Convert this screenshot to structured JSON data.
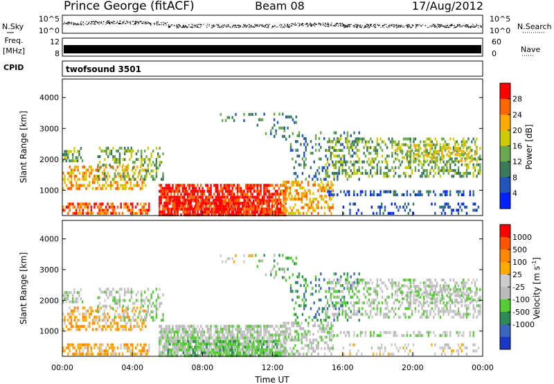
{
  "header": {
    "station": "Prince George (fitACF)",
    "beam": "Beam 08",
    "date": "17/Aug/2012"
  },
  "strips": {
    "nsky_label": "N.Sky",
    "nsky_ticks": [
      "10^5",
      "10^0"
    ],
    "nsearch_label": "N.Search",
    "nsearch_ticks": [
      "10^5",
      "10^0"
    ],
    "freq_label_1": "Freq.",
    "freq_label_2": "[MHz]",
    "freq_ticks": [
      "12",
      "8"
    ],
    "nave_label": "Nave",
    "nave_ticks": [
      "60",
      "0"
    ],
    "cpid_label": "CPID",
    "cpid_value": "twofsound 3501"
  },
  "colors": {
    "power_scale": [
      "#0022ff",
      "#2255bb",
      "#3a7a5a",
      "#6aa84f",
      "#cccc00",
      "#ffaa00",
      "#ff6600",
      "#ff0000"
    ],
    "velocity_scale": [
      "#1a37c8",
      "#3a66c0",
      "#2e8a55",
      "#55cc33",
      "#bbbbbb",
      "#cccccc",
      "#ffaa00",
      "#ff8800",
      "#ff5500",
      "#ff0000"
    ]
  },
  "chart_data": [
    {
      "type": "heatmap",
      "name": "power",
      "ylabel": "Slant Range [km]",
      "xlabel": "",
      "y_ticks": [
        "4000",
        "3000",
        "2000",
        "1000"
      ],
      "y_tick_values": [
        4000,
        3000,
        2000,
        1000
      ],
      "ylim": [
        180,
        4600
      ],
      "colorbar_label": "Power [dB]",
      "colorbar_ticks": [
        "28",
        "24",
        "20",
        "16",
        "12",
        "8",
        "4"
      ],
      "colorbar_range": [
        0,
        32
      ],
      "x_ticks": [
        "00:00",
        "04:00",
        "08:00",
        "12:00",
        "16:00",
        "20:00",
        "00:00"
      ],
      "xlim_hours": [
        0,
        24
      ],
      "grid": false
    },
    {
      "type": "heatmap",
      "name": "velocity",
      "ylabel": "Slant Range [km]",
      "xlabel": "Time UT",
      "y_ticks": [
        "4000",
        "3000",
        "2000",
        "1000"
      ],
      "y_tick_values": [
        4000,
        3000,
        2000,
        1000
      ],
      "ylim": [
        180,
        4600
      ],
      "colorbar_label": "Velocity [m s",
      "colorbar_label_sup": "-1",
      "colorbar_label_end": "]",
      "colorbar_ticks": [
        "1000",
        "500",
        "100",
        "25",
        "-25",
        "-100",
        "-500",
        "-1000"
      ],
      "x_ticks": [
        "00:00",
        "04:00",
        "08:00",
        "12:00",
        "16:00",
        "20:00",
        "00:00"
      ],
      "xlim_hours": [
        0,
        24
      ],
      "grid": false
    }
  ]
}
